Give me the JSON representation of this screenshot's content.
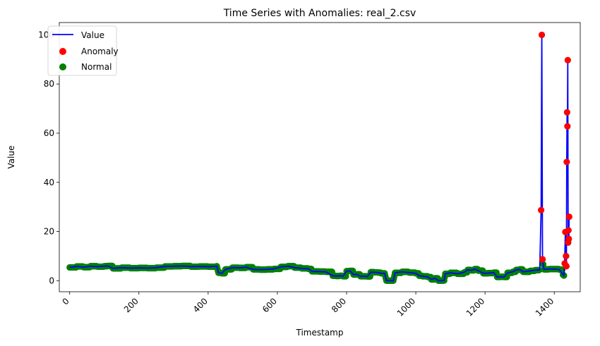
{
  "chart_data": {
    "type": "line",
    "title": "Time Series with Anomalies: real_2.csv",
    "xlabel": "Timestamp",
    "ylabel": "Value",
    "xlim": [
      -30,
      1475
    ],
    "ylim": [
      -4.5,
      105
    ],
    "x_ticks": [
      0,
      200,
      400,
      600,
      800,
      1000,
      1200,
      1400
    ],
    "y_ticks": [
      0,
      20,
      40,
      60,
      80,
      100
    ],
    "x_tick_rotation": 45,
    "legend": {
      "placement": "upper-left",
      "entries": [
        {
          "label": "Value",
          "marker": "line",
          "color": "#0000ff"
        },
        {
          "label": "Anomaly",
          "marker": "dot",
          "color": "#ff0000"
        },
        {
          "label": "Normal",
          "marker": "dot",
          "color": "#008000"
        }
      ]
    },
    "colors": {
      "value_line": "#0000ff",
      "anomaly": "#ff0000",
      "normal": "#008000"
    },
    "value_series": {
      "name": "Value",
      "points": [
        [
          0,
          5.4
        ],
        [
          20,
          5.8
        ],
        [
          40,
          5.5
        ],
        [
          60,
          5.9
        ],
        [
          80,
          5.7
        ],
        [
          100,
          5.9
        ],
        [
          110,
          6.0
        ],
        [
          125,
          5.0
        ],
        [
          150,
          5.3
        ],
        [
          175,
          5.1
        ],
        [
          200,
          5.2
        ],
        [
          225,
          5.1
        ],
        [
          250,
          5.3
        ],
        [
          275,
          5.8
        ],
        [
          300,
          5.9
        ],
        [
          325,
          6.0
        ],
        [
          350,
          5.7
        ],
        [
          375,
          5.8
        ],
        [
          400,
          5.7
        ],
        [
          425,
          5.9
        ],
        [
          430,
          3.2
        ],
        [
          440,
          3.0
        ],
        [
          450,
          4.6
        ],
        [
          470,
          5.3
        ],
        [
          490,
          5.2
        ],
        [
          510,
          5.5
        ],
        [
          530,
          4.6
        ],
        [
          550,
          4.5
        ],
        [
          570,
          4.6
        ],
        [
          590,
          4.8
        ],
        [
          610,
          5.6
        ],
        [
          630,
          5.9
        ],
        [
          650,
          5.3
        ],
        [
          670,
          5.0
        ],
        [
          690,
          4.8
        ],
        [
          700,
          3.8
        ],
        [
          720,
          3.7
        ],
        [
          740,
          3.6
        ],
        [
          760,
          2.0
        ],
        [
          770,
          1.9
        ],
        [
          780,
          2.0
        ],
        [
          790,
          1.8
        ],
        [
          800,
          3.9
        ],
        [
          810,
          4.0
        ],
        [
          820,
          2.5
        ],
        [
          830,
          2.6
        ],
        [
          840,
          1.8
        ],
        [
          850,
          1.8
        ],
        [
          860,
          1.7
        ],
        [
          870,
          3.5
        ],
        [
          880,
          3.4
        ],
        [
          890,
          3.3
        ],
        [
          900,
          3.0
        ],
        [
          910,
          3.0
        ],
        [
          915,
          0.0
        ],
        [
          925,
          0.0
        ],
        [
          935,
          0.0
        ],
        [
          940,
          3.2
        ],
        [
          960,
          3.6
        ],
        [
          980,
          3.3
        ],
        [
          1000,
          3.0
        ],
        [
          1010,
          2.0
        ],
        [
          1020,
          1.8
        ],
        [
          1035,
          1.5
        ],
        [
          1045,
          0.5
        ],
        [
          1055,
          1.0
        ],
        [
          1065,
          0.0
        ],
        [
          1075,
          0.0
        ],
        [
          1082,
          0.1
        ],
        [
          1085,
          2.8
        ],
        [
          1100,
          3.2
        ],
        [
          1120,
          2.8
        ],
        [
          1140,
          3.4
        ],
        [
          1150,
          4.4
        ],
        [
          1160,
          4.2
        ],
        [
          1170,
          4.7
        ],
        [
          1180,
          4.1
        ],
        [
          1195,
          3.0
        ],
        [
          1210,
          3.1
        ],
        [
          1225,
          3.3
        ],
        [
          1235,
          1.5
        ],
        [
          1245,
          1.6
        ],
        [
          1255,
          1.5
        ],
        [
          1265,
          3.2
        ],
        [
          1280,
          3.6
        ],
        [
          1290,
          4.4
        ],
        [
          1300,
          4.6
        ],
        [
          1310,
          3.6
        ],
        [
          1330,
          4.0
        ],
        [
          1345,
          4.3
        ],
        [
          1358,
          4.4
        ],
        [
          1362,
          28.7
        ],
        [
          1364,
          100.0
        ],
        [
          1366,
          8.7
        ],
        [
          1370,
          4.6
        ],
        [
          1385,
          4.7
        ],
        [
          1400,
          4.7
        ],
        [
          1415,
          4.5
        ],
        [
          1425,
          2.4
        ],
        [
          1428,
          2.1
        ],
        [
          1430,
          7.0
        ],
        [
          1432,
          19.8
        ],
        [
          1434,
          10.0
        ],
        [
          1435,
          5.9
        ],
        [
          1436,
          48.3
        ],
        [
          1437,
          68.5
        ],
        [
          1438,
          62.8
        ],
        [
          1439,
          89.7
        ],
        [
          1440,
          15.5
        ],
        [
          1441,
          20.5
        ],
        [
          1442,
          17.0
        ],
        [
          1443,
          26.0
        ]
      ]
    },
    "anomaly_points": [
      [
        1362,
        28.7
      ],
      [
        1364,
        100.0
      ],
      [
        1366,
        8.7
      ],
      [
        1430,
        7.0
      ],
      [
        1432,
        19.8
      ],
      [
        1434,
        10.0
      ],
      [
        1435,
        5.9
      ],
      [
        1436,
        48.3
      ],
      [
        1437,
        68.5
      ],
      [
        1438,
        62.8
      ],
      [
        1439,
        89.7
      ],
      [
        1440,
        15.5
      ],
      [
        1441,
        20.5
      ],
      [
        1442,
        17.0
      ],
      [
        1443,
        26.0
      ]
    ]
  }
}
